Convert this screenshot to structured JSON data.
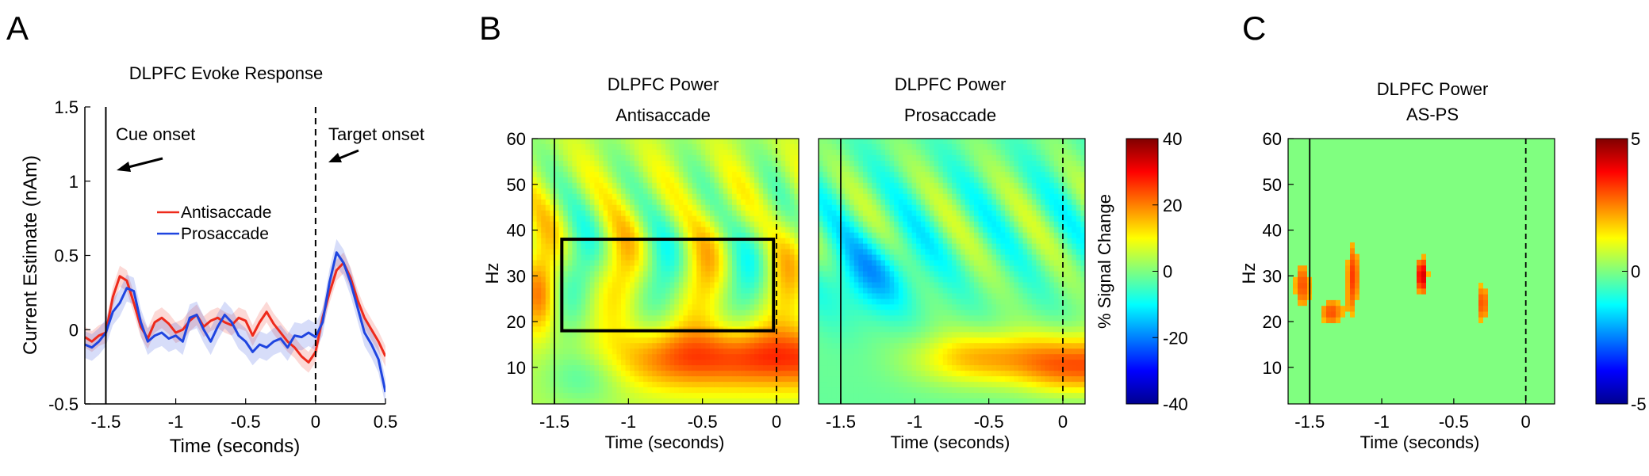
{
  "colors": {
    "antisaccade": "#ee2a1b",
    "prosaccade": "#1f45e0",
    "axis": "#000000",
    "roi_box": "#000000"
  },
  "chart_data": [
    {
      "panel": "A",
      "type": "line",
      "title": "DLPFC Evoke Response",
      "xlabel": "Time (seconds)",
      "ylabel": "Current Estimate (nAm)",
      "xlim": [
        -1.65,
        0.5
      ],
      "ylim": [
        -0.5,
        1.5
      ],
      "xticks": [
        -1.5,
        -1,
        -0.5,
        0,
        0.5
      ],
      "xtick_labels": [
        "-1.5",
        "-1",
        "-0.5",
        "0",
        "0.5"
      ],
      "yticks": [
        -0.5,
        0,
        0.5,
        1,
        1.5
      ],
      "ytick_labels": [
        "-0.5",
        "0",
        "0.5",
        "1",
        "1.5"
      ],
      "annotations": [
        {
          "text": "Cue onset",
          "x": -1.5
        },
        {
          "text": "Target onset",
          "x": 0
        }
      ],
      "legend": "upper-middle",
      "x": [
        -1.65,
        -1.6,
        -1.55,
        -1.5,
        -1.45,
        -1.4,
        -1.35,
        -1.3,
        -1.25,
        -1.2,
        -1.15,
        -1.1,
        -1.05,
        -1.0,
        -0.95,
        -0.9,
        -0.85,
        -0.8,
        -0.75,
        -0.7,
        -0.65,
        -0.6,
        -0.55,
        -0.5,
        -0.45,
        -0.4,
        -0.35,
        -0.3,
        -0.25,
        -0.2,
        -0.15,
        -0.1,
        -0.05,
        0.0,
        0.05,
        0.1,
        0.15,
        0.2,
        0.25,
        0.3,
        0.35,
        0.4,
        0.45,
        0.5
      ],
      "series": [
        {
          "name": "Antisaccade",
          "values": [
            -0.05,
            -0.08,
            -0.04,
            -0.02,
            0.22,
            0.36,
            0.33,
            0.18,
            0.02,
            -0.06,
            0.05,
            0.08,
            0.04,
            -0.02,
            0.0,
            0.06,
            0.1,
            0.02,
            0.06,
            0.08,
            0.05,
            0.03,
            0.08,
            0.06,
            -0.04,
            0.05,
            0.12,
            0.04,
            -0.02,
            -0.08,
            -0.12,
            -0.18,
            -0.22,
            -0.15,
            0.08,
            0.25,
            0.4,
            0.45,
            0.35,
            0.2,
            0.08,
            0.0,
            -0.08,
            -0.18
          ],
          "sem": 0.07
        },
        {
          "name": "Prosaccade",
          "values": [
            -0.1,
            -0.12,
            -0.08,
            -0.02,
            0.12,
            0.18,
            0.28,
            0.26,
            0.05,
            -0.08,
            -0.04,
            -0.02,
            -0.06,
            -0.04,
            -0.08,
            0.08,
            0.1,
            0.0,
            -0.08,
            0.02,
            0.1,
            0.05,
            -0.04,
            -0.08,
            -0.15,
            -0.1,
            -0.12,
            -0.08,
            -0.06,
            -0.12,
            -0.04,
            -0.05,
            -0.02,
            -0.05,
            0.05,
            0.32,
            0.52,
            0.45,
            0.32,
            0.15,
            -0.02,
            -0.1,
            -0.2,
            -0.42
          ],
          "sem": 0.09
        }
      ]
    },
    {
      "panel": "B-left",
      "type": "heatmap",
      "title": "DLPFC Power",
      "subtitle": "Antisaccade",
      "xlabel": "Time (seconds)",
      "ylabel": "Hz",
      "xlim": [
        -1.65,
        0.15
      ],
      "ylim": [
        2,
        60
      ],
      "xticks": [
        -1.5,
        -1,
        -0.5,
        0
      ],
      "xtick_labels": [
        "-1.5",
        "-1",
        "-0.5",
        "0"
      ],
      "yticks": [
        10,
        20,
        30,
        40,
        50,
        60
      ],
      "ytick_labels": [
        "10",
        "20",
        "30",
        "40",
        "50",
        "60"
      ],
      "roi_box": {
        "x": [
          -1.45,
          -0.02
        ],
        "y": [
          18,
          38
        ]
      },
      "z_description_units": "% Signal Change",
      "zlim": [
        -40,
        40
      ]
    },
    {
      "panel": "B-right",
      "type": "heatmap",
      "title": "DLPFC Power",
      "subtitle": "Prosaccade",
      "xlabel": "Time (seconds)",
      "xlim": [
        -1.65,
        0.15
      ],
      "ylim": [
        2,
        60
      ],
      "xticks": [
        -1.5,
        -1,
        -0.5,
        0
      ],
      "xtick_labels": [
        "-1.5",
        "-1",
        "-0.5",
        "0"
      ],
      "zlim": [
        -40,
        40
      ]
    },
    {
      "panel": "B-colorbar",
      "type": "heatmap",
      "label": "% Signal Change",
      "ticks": [
        -40,
        -20,
        0,
        20,
        40
      ],
      "tick_labels": [
        "-40",
        "-20",
        "0",
        "20",
        "40"
      ]
    },
    {
      "panel": "C",
      "type": "heatmap",
      "title": "DLPFC Power",
      "subtitle": "AS-PS",
      "xlabel": "Time (seconds)",
      "ylabel": "Hz",
      "xlim": [
        -1.65,
        0.2
      ],
      "ylim": [
        2,
        60
      ],
      "xticks": [
        -1.5,
        -1,
        -0.5,
        0
      ],
      "xtick_labels": [
        "-1.5",
        "-1",
        "-0.5",
        "0"
      ],
      "yticks": [
        10,
        20,
        30,
        40,
        50,
        60
      ],
      "ytick_labels": [
        "10",
        "20",
        "30",
        "40",
        "50",
        "60"
      ],
      "zlim": [
        -5,
        5
      ],
      "colorbar_ticks": [
        -5,
        0,
        5
      ],
      "colorbar_tick_labels": [
        "-5",
        "0",
        "5"
      ]
    }
  ],
  "panel_letters": {
    "a": "A",
    "b": "B",
    "c": "C"
  }
}
